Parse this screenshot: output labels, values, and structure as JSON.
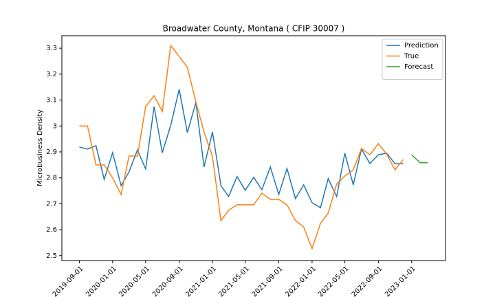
{
  "chart_data": {
    "type": "line",
    "title": "Broadwater County, Montana ( CFIP 30007 )",
    "y_label": "Microbusiness Density",
    "x": [
      "2019-09-01",
      "2019-10-01",
      "2019-11-01",
      "2019-12-01",
      "2020-01-01",
      "2020-02-01",
      "2020-03-01",
      "2020-04-01",
      "2020-05-01",
      "2020-06-01",
      "2020-07-01",
      "2020-08-01",
      "2020-09-01",
      "2020-10-01",
      "2020-11-01",
      "2020-12-01",
      "2021-01-01",
      "2021-02-01",
      "2021-03-01",
      "2021-04-01",
      "2021-05-01",
      "2021-06-01",
      "2021-07-01",
      "2021-08-01",
      "2021-09-01",
      "2021-10-01",
      "2021-11-01",
      "2021-12-01",
      "2022-01-01",
      "2022-02-01",
      "2022-03-01",
      "2022-04-01",
      "2022-05-01",
      "2022-06-01",
      "2022-07-01",
      "2022-08-01",
      "2022-09-01",
      "2022-10-01",
      "2022-11-01",
      "2022-12-01",
      "2023-01-01",
      "2023-02-01",
      "2023-03-01"
    ],
    "series": [
      {
        "name": "Prediction",
        "color": "#1f77b4",
        "values": [
          2.919,
          2.911,
          2.924,
          2.794,
          2.897,
          2.77,
          2.823,
          2.908,
          2.834,
          3.075,
          2.897,
          3.003,
          3.141,
          2.974,
          3.091,
          2.842,
          2.977,
          2.77,
          2.728,
          2.805,
          2.752,
          2.802,
          2.754,
          2.842,
          2.736,
          2.836,
          2.72,
          2.773,
          2.704,
          2.685,
          2.797,
          2.728,
          2.895,
          2.773,
          2.911,
          2.855,
          2.889,
          2.895,
          2.855,
          2.855,
          null,
          null,
          null
        ]
      },
      {
        "name": "True",
        "color": "#ff7f0e",
        "values": [
          3.0,
          3.0,
          2.85,
          2.85,
          2.8,
          2.736,
          2.884,
          2.884,
          3.075,
          3.117,
          3.056,
          3.31,
          3.268,
          3.226,
          3.093,
          2.977,
          2.882,
          2.635,
          2.675,
          2.696,
          2.696,
          2.696,
          2.741,
          2.717,
          2.717,
          2.696,
          2.635,
          2.611,
          2.527,
          2.625,
          2.664,
          2.776,
          2.807,
          2.831,
          2.913,
          2.889,
          2.932,
          2.892,
          2.831,
          2.871,
          null,
          null,
          null
        ]
      },
      {
        "name": "Forecast",
        "color": "#2ca02c",
        "values": [
          null,
          null,
          null,
          null,
          null,
          null,
          null,
          null,
          null,
          null,
          null,
          null,
          null,
          null,
          null,
          null,
          null,
          null,
          null,
          null,
          null,
          null,
          null,
          null,
          null,
          null,
          null,
          null,
          null,
          null,
          null,
          null,
          null,
          null,
          null,
          null,
          null,
          null,
          null,
          null,
          2.889,
          2.858,
          2.858
        ]
      }
    ],
    "xlim": [
      "2019-06-29",
      "2023-05-05"
    ],
    "xticks": [
      "2019-09-01",
      "2020-01-01",
      "2020-05-01",
      "2020-09-01",
      "2021-01-01",
      "2021-05-01",
      "2021-09-01",
      "2022-01-01",
      "2022-05-01",
      "2022-09-01",
      "2023-01-01"
    ],
    "ylim": [
      2.481,
      3.348
    ],
    "yticks": [
      2.5,
      2.6,
      2.7,
      2.8,
      2.9,
      3.0,
      3.1,
      3.2,
      3.3
    ],
    "legend": "upper right",
    "grid": false
  }
}
